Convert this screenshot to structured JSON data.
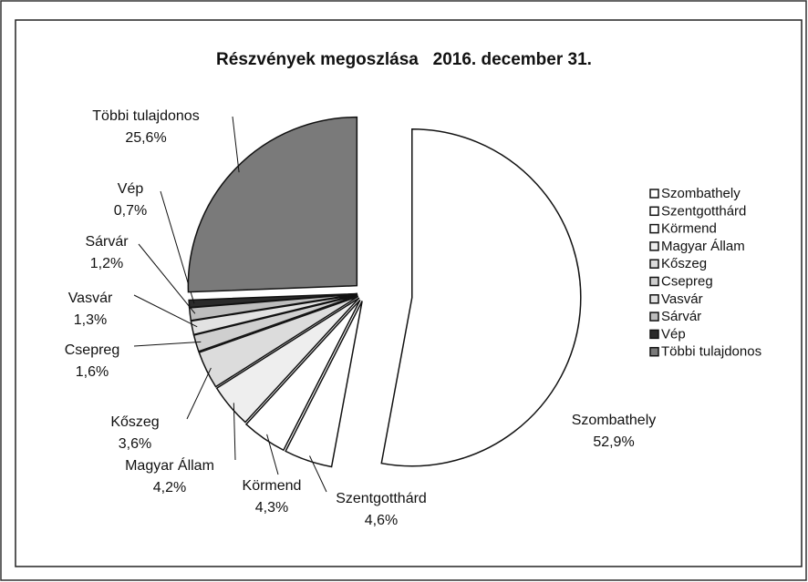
{
  "chart_data": {
    "type": "pie",
    "title": "Részvények megoszlása   2016. december 31.",
    "categories": [
      "Szombathely",
      "Szentgotthárd",
      "Körmend",
      "Magyar Állam",
      "Kőszeg",
      "Csepreg",
      "Vasvár",
      "Sárvár",
      "Vép",
      "Többi tulajdonos"
    ],
    "values": [
      52.9,
      4.6,
      4.3,
      4.2,
      3.6,
      1.6,
      1.3,
      1.2,
      0.7,
      25.6
    ],
    "value_labels": [
      "52,9%",
      "4,6%",
      "4,3%",
      "4,2%",
      "3,6%",
      "1,6%",
      "1,3%",
      "1,2%",
      "0,7%",
      "25,6%"
    ],
    "colors": [
      "#ffffff",
      "#ffffff",
      "#ffffff",
      "#eeeeee",
      "#dcdcdc",
      "#cfcfcf",
      "#e2e2e2",
      "#bdbdbd",
      "#2a2a2a",
      "#7a7a7a"
    ],
    "legend": "right"
  }
}
